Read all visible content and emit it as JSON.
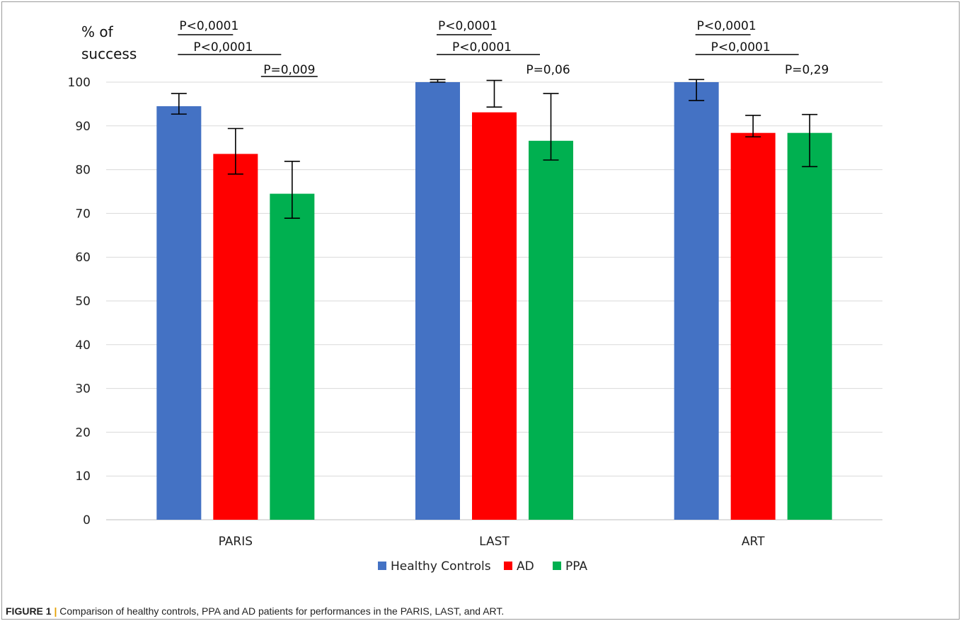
{
  "chart_data": {
    "type": "bar",
    "ylabel_line1": "% of",
    "ylabel_line2": "success",
    "categories": [
      "PARIS",
      "LAST",
      "ART"
    ],
    "ylim": [
      0,
      100
    ],
    "yticks": [
      0,
      10,
      20,
      30,
      40,
      50,
      60,
      70,
      80,
      90,
      100
    ],
    "grid": true,
    "legend_position": "bottom",
    "series": [
      {
        "name": "Healthy Controls",
        "color": "#4472c4",
        "values": [
          94.5,
          100,
          100
        ],
        "err_low": [
          92.7,
          100,
          95.8
        ],
        "err_high": [
          97.4,
          100.6,
          100.6
        ]
      },
      {
        "name": "AD",
        "color": "#ff0000",
        "values": [
          83.6,
          93.1,
          88.4
        ],
        "err_low": [
          79.0,
          94.3,
          87.5
        ],
        "err_high": [
          89.4,
          100.4,
          92.4
        ]
      },
      {
        "name": "PPA",
        "color": "#00b050",
        "values": [
          74.5,
          86.6,
          88.4
        ],
        "err_low": [
          68.9,
          82.2,
          80.7
        ],
        "err_high": [
          81.9,
          97.4,
          92.6
        ]
      }
    ],
    "annotations": [
      {
        "category": 0,
        "text": "P<0,0001",
        "from": 0,
        "to": 1,
        "tier": 0
      },
      {
        "category": 0,
        "text": "P<0,0001",
        "from": 0,
        "to": 2,
        "tier": 1
      },
      {
        "category": 0,
        "text": "P=0,009",
        "from": 1,
        "to": 2,
        "tier": 2,
        "underline": true
      },
      {
        "category": 1,
        "text": "P<0,0001",
        "from": 0,
        "to": 1,
        "tier": 0
      },
      {
        "category": 1,
        "text": "P<0,0001",
        "from": 0,
        "to": 2,
        "tier": 1
      },
      {
        "category": 1,
        "text": "P=0,06",
        "from": 1,
        "to": 2,
        "tier": 2,
        "underline": false
      },
      {
        "category": 2,
        "text": "P<0,0001",
        "from": 0,
        "to": 1,
        "tier": 0
      },
      {
        "category": 2,
        "text": "P<0,0001",
        "from": 0,
        "to": 2,
        "tier": 1
      },
      {
        "category": 2,
        "text": "P=0,29",
        "from": 1,
        "to": 2,
        "tier": 2,
        "underline": false
      }
    ]
  },
  "caption": {
    "label": "FIGURE 1",
    "separator": "|",
    "text": " Comparison of healthy controls, PPA and AD patients for performances in the PARIS, LAST, and ART."
  }
}
